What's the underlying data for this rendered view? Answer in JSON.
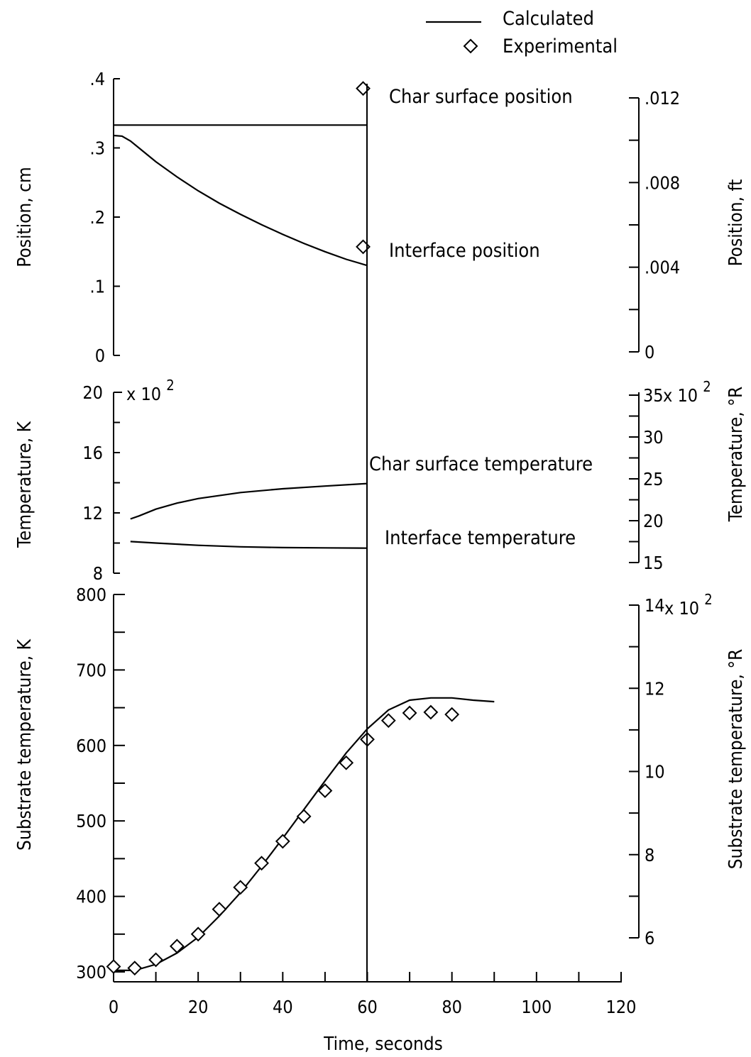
{
  "chart_data": [
    {
      "type": "line",
      "panel": "position",
      "x": {
        "label": "",
        "range": [
          0,
          120
        ]
      },
      "y_left": {
        "label": "Position, cm",
        "range": [
          0,
          0.4
        ],
        "ticks": [
          0,
          0.1,
          0.2,
          0.3,
          0.4
        ],
        "tick_labels": [
          "0",
          ".1",
          ".2",
          ".3",
          ".4"
        ]
      },
      "y_right": {
        "label": "Position, ft",
        "range": [
          0,
          0.012
        ],
        "ticks": [
          0,
          0.004,
          0.008,
          0.012
        ],
        "tick_labels": [
          "0",
          ".004",
          ".008",
          ".012"
        ]
      },
      "annotations": [
        "Char surface position",
        "Interface position"
      ],
      "series": [
        {
          "kind": "calculated",
          "x": [
            0,
            60
          ],
          "y": [
            0.333,
            0.333
          ]
        },
        {
          "kind": "calculated",
          "x": [
            0,
            2,
            4,
            7,
            10,
            15,
            20,
            25,
            30,
            35,
            40,
            45,
            50,
            55,
            60
          ],
          "y": [
            0.318,
            0.317,
            0.31,
            0.295,
            0.28,
            0.258,
            0.238,
            0.22,
            0.204,
            0.189,
            0.175,
            0.162,
            0.15,
            0.139,
            0.13
          ]
        },
        {
          "kind": "experimental",
          "x": [
            59,
            59
          ],
          "y": [
            0.386,
            0.157
          ]
        }
      ]
    },
    {
      "type": "line",
      "panel": "temperature",
      "x": {
        "label": "",
        "range": [
          0,
          120
        ]
      },
      "y_left": {
        "label": "Temperature,  K",
        "range": [
          8,
          20
        ],
        "ticks": [
          8,
          12,
          16,
          20
        ],
        "tick_labels": [
          "8",
          "12",
          "16",
          "20"
        ],
        "multiplier": "x 10",
        "multiplier_exp": "2"
      },
      "y_right": {
        "label": "Temperature, °R",
        "ticks": [
          15,
          20,
          25,
          30,
          35
        ],
        "tick_labels": [
          "15",
          "20",
          "25",
          "30",
          "35"
        ],
        "multiplier": "x 10",
        "multiplier_exp": "2"
      },
      "annotations": [
        "Char surface temperature",
        "Interface temperature"
      ],
      "series": [
        {
          "kind": "calculated",
          "x": [
            4,
            6,
            10,
            15,
            20,
            30,
            40,
            50,
            60
          ],
          "y": [
            11.6,
            11.8,
            12.25,
            12.65,
            12.95,
            13.35,
            13.6,
            13.78,
            13.95
          ]
        },
        {
          "kind": "calculated",
          "x": [
            4,
            10,
            20,
            30,
            40,
            50,
            60
          ],
          "y": [
            10.1,
            10.0,
            9.85,
            9.75,
            9.7,
            9.68,
            9.66
          ]
        }
      ]
    },
    {
      "type": "line",
      "panel": "substrate",
      "x": {
        "label": "Time,  seconds",
        "range": [
          0,
          120
        ],
        "ticks": [
          0,
          20,
          40,
          60,
          80,
          100,
          120
        ],
        "tick_labels": [
          "0",
          "20",
          "40",
          "60",
          "80",
          "100",
          "120"
        ]
      },
      "y_left": {
        "label": "Substrate temperature,  K",
        "range": [
          300,
          800
        ],
        "ticks": [
          300,
          400,
          500,
          600,
          700,
          800
        ],
        "tick_labels": [
          "300",
          "400",
          "500",
          "600",
          "700",
          "800"
        ]
      },
      "y_right": {
        "label": "Substrate temperature, °R",
        "ticks": [
          6,
          8,
          10,
          12,
          14
        ],
        "tick_labels": [
          "6",
          "8",
          "10",
          "12",
          "14"
        ],
        "multiplier": "x 10",
        "multiplier_exp": "2"
      },
      "series": [
        {
          "kind": "calculated",
          "x": [
            0,
            5,
            10,
            15,
            20,
            25,
            30,
            35,
            40,
            45,
            50,
            55,
            60,
            65,
            70,
            75,
            80,
            85,
            90
          ],
          "y": [
            302,
            302,
            310,
            325,
            346,
            374,
            405,
            440,
            477,
            515,
            553,
            590,
            622,
            647,
            660,
            663,
            663,
            660,
            658
          ]
        },
        {
          "kind": "experimental",
          "x": [
            0,
            5,
            10,
            15,
            20,
            25,
            30,
            35,
            40,
            45,
            50,
            55,
            60,
            65,
            70,
            75,
            80
          ],
          "y": [
            307,
            305,
            316,
            334,
            350,
            383,
            412,
            444,
            473,
            506,
            540,
            577,
            608,
            633,
            643,
            644,
            641
          ]
        }
      ]
    }
  ],
  "legend": {
    "calculated": "Calculated",
    "experimental": "Experimental"
  }
}
